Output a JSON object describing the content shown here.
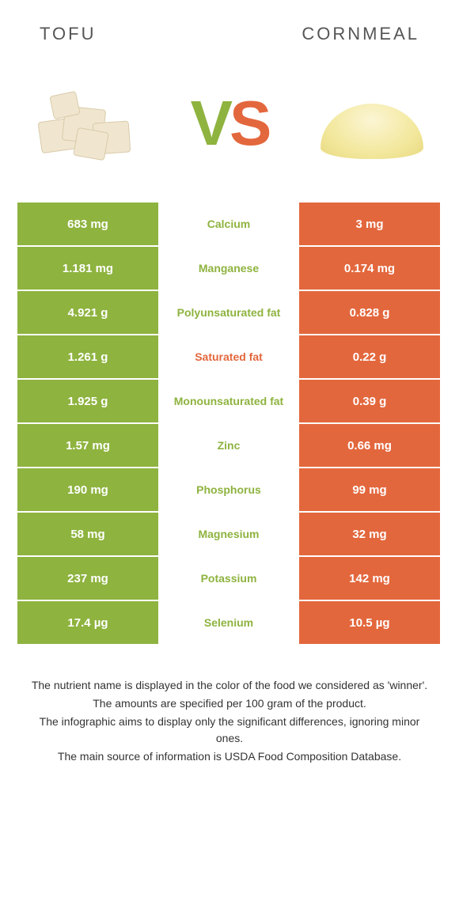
{
  "colors": {
    "left": "#8eb33f",
    "right": "#e3673d",
    "mid_winner_left": "#8eb33f",
    "mid_winner_right": "#e3673d",
    "vs_v": "#8eb33f",
    "vs_s": "#e3673d"
  },
  "header": {
    "left": "TOFU",
    "right": "CORNMEAL"
  },
  "vs": {
    "v": "V",
    "s": "S"
  },
  "rows": [
    {
      "left": "683 mg",
      "mid": "Calcium",
      "right": "3 mg",
      "winner": "left"
    },
    {
      "left": "1.181 mg",
      "mid": "Manganese",
      "right": "0.174 mg",
      "winner": "left"
    },
    {
      "left": "4.921 g",
      "mid": "Polyunsaturated fat",
      "right": "0.828 g",
      "winner": "left"
    },
    {
      "left": "1.261 g",
      "mid": "Saturated fat",
      "right": "0.22 g",
      "winner": "right"
    },
    {
      "left": "1.925 g",
      "mid": "Monounsaturated fat",
      "right": "0.39 g",
      "winner": "left"
    },
    {
      "left": "1.57 mg",
      "mid": "Zinc",
      "right": "0.66 mg",
      "winner": "left"
    },
    {
      "left": "190 mg",
      "mid": "Phosphorus",
      "right": "99 mg",
      "winner": "left"
    },
    {
      "left": "58 mg",
      "mid": "Magnesium",
      "right": "32 mg",
      "winner": "left"
    },
    {
      "left": "237 mg",
      "mid": "Potassium",
      "right": "142 mg",
      "winner": "left"
    },
    {
      "left": "17.4 µg",
      "mid": "Selenium",
      "right": "10.5 µg",
      "winner": "left"
    }
  ],
  "footer": {
    "line1": "The nutrient name is displayed in the color of the food we considered as 'winner'.",
    "line2": "The amounts are specified per 100 gram of the product.",
    "line3": "The infographic aims to display only the significant differences, ignoring minor ones.",
    "line4": "The main source of information is USDA Food Composition Database."
  }
}
